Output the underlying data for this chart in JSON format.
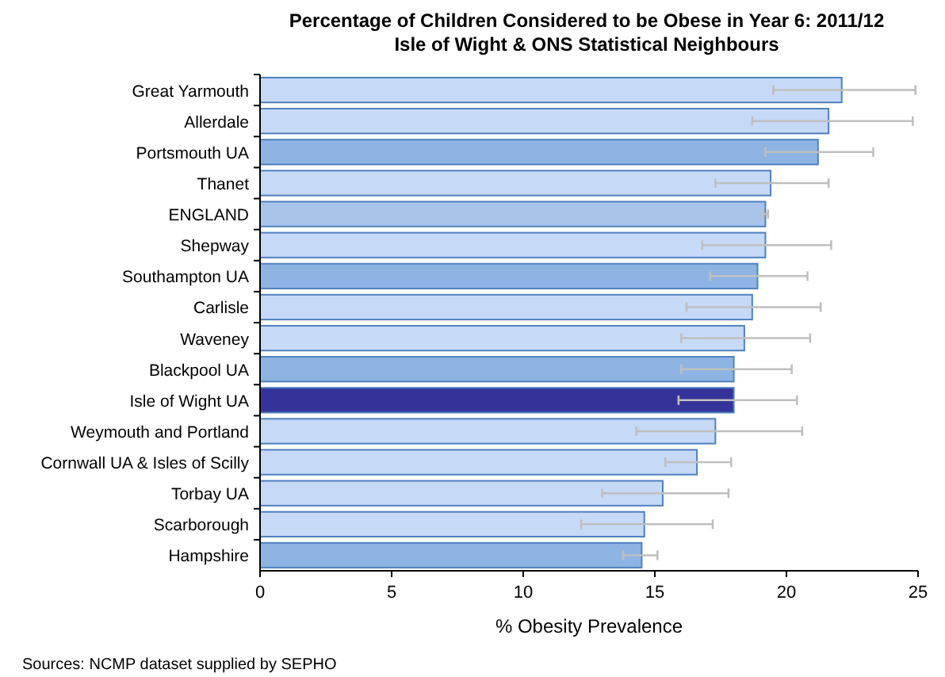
{
  "chart_data": {
    "type": "bar",
    "orientation": "horizontal",
    "title": "Percentage of Children Considered to be Obese in Year 6: 2011/12",
    "subtitle": "Isle of Wight & ONS Statistical Neighbours",
    "xlabel": "% Obesity Prevalence",
    "categories": [
      "Great Yarmouth",
      "Allerdale",
      "Portsmouth UA",
      "Thanet",
      "ENGLAND",
      "Shepway",
      "Southampton UA",
      "Carlisle",
      "Waveney",
      "Blackpool UA",
      "Isle of Wight UA",
      "Weymouth and Portland",
      "Cornwall UA & Isles of Scilly",
      "Torbay UA",
      "Scarborough",
      "Hampshire"
    ],
    "values": [
      22.1,
      21.6,
      21.2,
      19.4,
      19.2,
      19.2,
      18.9,
      18.7,
      18.4,
      18.0,
      18.0,
      17.3,
      16.6,
      15.3,
      14.6,
      14.5
    ],
    "colors": [
      "#c6d9f7",
      "#c6d9f7",
      "#8eb4e3",
      "#c6d9f7",
      "#a9c4eb",
      "#c6d9f7",
      "#8eb4e3",
      "#c6d9f7",
      "#c6d9f7",
      "#8eb4e3",
      "#333399",
      "#c6d9f7",
      "#c6d9f7",
      "#c6d9f7",
      "#c6d9f7",
      "#8eb4e3"
    ],
    "errors": [
      [
        19.5,
        24.9
      ],
      [
        18.7,
        24.8
      ],
      [
        19.2,
        23.3
      ],
      [
        17.3,
        21.6
      ],
      [
        19.1,
        19.3
      ],
      [
        16.8,
        21.7
      ],
      [
        17.1,
        20.8
      ],
      [
        16.2,
        21.3
      ],
      [
        16.0,
        20.9
      ],
      [
        16.0,
        20.2
      ],
      [
        15.9,
        20.4
      ],
      [
        14.3,
        20.6
      ],
      [
        15.4,
        17.9
      ],
      [
        13.0,
        17.8
      ],
      [
        12.2,
        17.2
      ],
      [
        13.8,
        15.1
      ]
    ],
    "xlim": [
      0,
      25
    ],
    "xticks": [
      0,
      5,
      10,
      15,
      20,
      25
    ],
    "annotations": [
      "Sources: NCMP dataset supplied by SEPHO"
    ]
  }
}
